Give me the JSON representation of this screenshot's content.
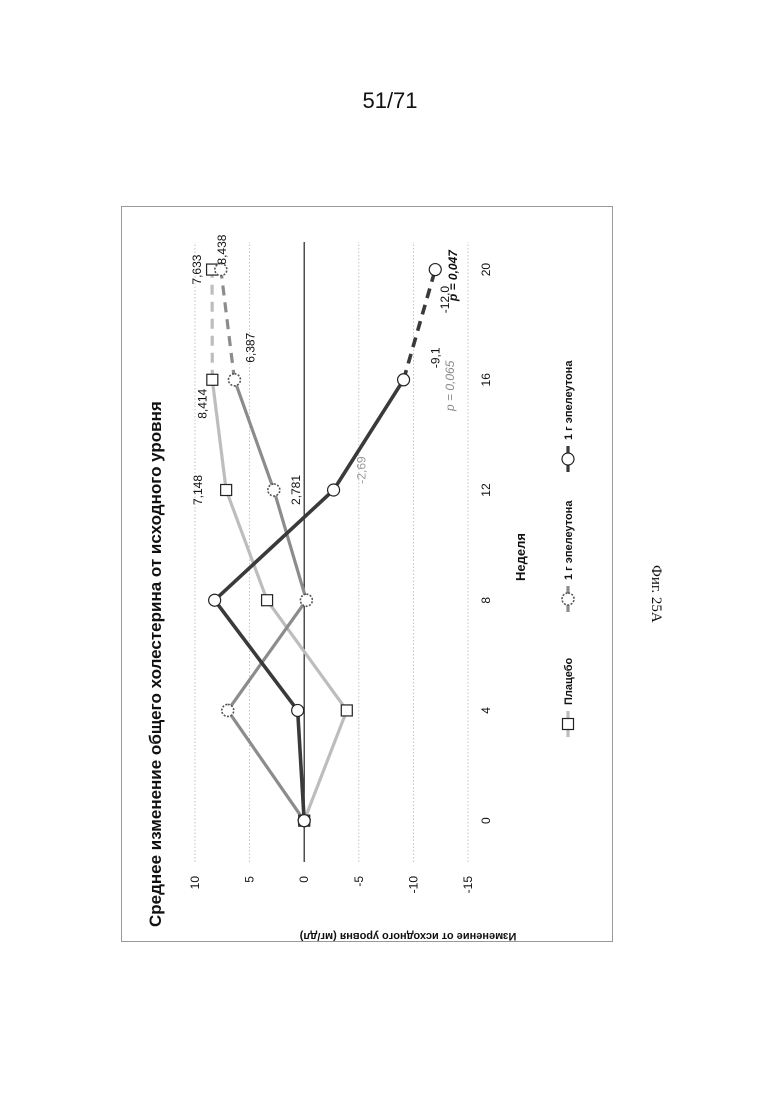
{
  "page_number": "51/71",
  "figure_caption": "Фиг. 25А",
  "chart_data": {
    "type": "line",
    "title": "Среднее изменение общего холестерина от исходного уровня",
    "xlabel": "Неделя",
    "ylabel": "Изменение от исходного уровня (мг/дл)",
    "x_ticks": [
      0,
      4,
      8,
      12,
      16,
      20
    ],
    "y_ticks": [
      10,
      5,
      0,
      -5,
      -10,
      -15
    ],
    "xlim": [
      -1.5,
      21
    ],
    "ylim": [
      -15,
      10
    ],
    "grid": "horizontal dotted",
    "legend_placement": "bottom",
    "series": [
      {
        "name": "Плацебо",
        "marker": "square",
        "color": "#bdbdbd",
        "points": [
          {
            "x": 0,
            "y": 0
          },
          {
            "x": 4,
            "y": -3.9
          },
          {
            "x": 8,
            "y": 3.4
          },
          {
            "x": 12,
            "y": 7.148
          },
          {
            "x": 16,
            "y": 8.414
          }
        ],
        "extension": [
          {
            "x": 16,
            "y": 8.414
          },
          {
            "x": 20,
            "y": 8.438
          }
        ],
        "labels": [
          {
            "x": 12,
            "y": 7.148,
            "text": "7,148"
          },
          {
            "x": 16,
            "y": 8.414,
            "text": "8,414"
          },
          {
            "x": 20,
            "y": 8.438,
            "text": "8,438"
          }
        ]
      },
      {
        "name": "1 г эпелеутона",
        "marker": "dashed-circle",
        "color": "#8c8c8c",
        "points": [
          {
            "x": 0,
            "y": 0
          },
          {
            "x": 4,
            "y": 7.0
          },
          {
            "x": 8,
            "y": -0.2
          },
          {
            "x": 12,
            "y": 2.781
          },
          {
            "x": 16,
            "y": 6.387
          }
        ],
        "extension": [
          {
            "x": 16,
            "y": 6.387
          },
          {
            "x": 20,
            "y": 7.633
          }
        ],
        "labels": [
          {
            "x": 12,
            "y": 2.781,
            "text": "2,781"
          },
          {
            "x": 16,
            "y": 6.387,
            "text": "6,387"
          },
          {
            "x": 20,
            "y": 7.633,
            "text": "7,633"
          }
        ]
      },
      {
        "name": "1 г эпелеутона",
        "marker": "circle",
        "color": "#3a3a3a",
        "points": [
          {
            "x": 0,
            "y": 0
          },
          {
            "x": 4,
            "y": 0.6
          },
          {
            "x": 8,
            "y": 8.2
          },
          {
            "x": 12,
            "y": -2.69
          },
          {
            "x": 16,
            "y": -9.1
          }
        ],
        "extension": [
          {
            "x": 16,
            "y": -9.1
          },
          {
            "x": 20,
            "y": -12.0
          }
        ],
        "labels": [
          {
            "x": 12,
            "y": -2.69,
            "text": "-2,69"
          },
          {
            "x": 16,
            "y": -9.1,
            "text": "-9,1"
          },
          {
            "x": 20,
            "y": -12.0,
            "text": "-12,0"
          }
        ]
      }
    ],
    "annotations": [
      {
        "x": 16,
        "text": "p = 0,065"
      },
      {
        "x": 20,
        "text": "p = 0,047"
      }
    ]
  }
}
